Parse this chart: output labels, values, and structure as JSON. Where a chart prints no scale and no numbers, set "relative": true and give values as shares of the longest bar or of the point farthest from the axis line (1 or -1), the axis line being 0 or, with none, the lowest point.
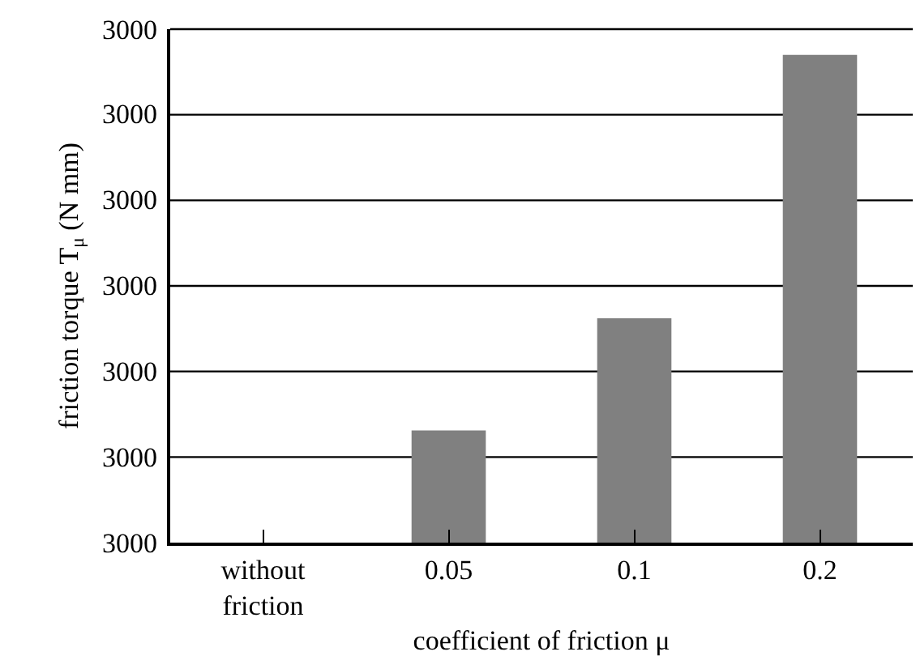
{
  "chart_data": {
    "type": "bar",
    "xlabel": "coefficient of friction μ",
    "ylabel": "friction torque T$_{μ}$ (N mm)",
    "categories": [
      "without\nfriction",
      "0.05",
      "0.1",
      "0.2"
    ],
    "values": [
      0,
      0.23,
      0.46,
      1
    ],
    "color": "#808080",
    "relative": true,
    "annotations": [
      "3000",
      "3000",
      "3000",
      "3000",
      "3000",
      "3000",
      "3000"
    ],
    "grid": "y"
  }
}
